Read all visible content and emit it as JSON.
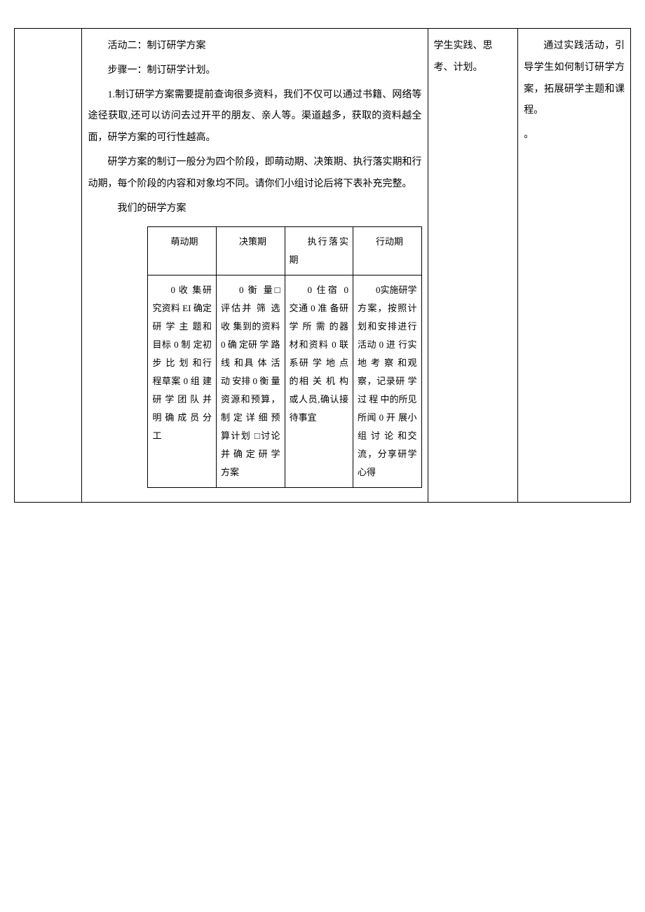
{
  "main": {
    "activity_title": "活动二：制订研学方案",
    "step_title": "步骤一：制订研学计划。",
    "para1": "1.制订研学方案需要提前查询很多资料，我们不仅可以通过书籍、网络等途径获取,还可以访问去过开平的朋友、亲人等。渠道越多，获取的资料越全面，研学方案的可行性越高。",
    "para2": "研学方案的制订一般分为四个阶段，即萌动期、决策期、执行落实期和行动期，每个阶段的内容和对象均不同。请你们小组讨论后将下表补充完整。",
    "table_caption": "我们的研学方案"
  },
  "inner_table": {
    "headers": {
      "h1": "萌动期",
      "h2": "决策期",
      "h3": "执行落实期",
      "h4": "行动期"
    },
    "cells": {
      "c1": "0 收 集研究资料\nEI 确定 研 学 主 题和目标\n0 制 定初 步 比 划 和行程草案\n0 组 建研 学 团 队 并明 确 成 员 分工",
      "c2": "0 衡 量□评估并 筛 选 收 集到的资料\n0 确 定研 学 路 线 和具 体 活 动 安排\n0 衡 量资源和预算，制 定 详 细 预算计划\n□讨论并 确 定 研 学方案",
      "c3": "0 住宿 0 交通\n0 准 备研 学 所 需 的器材和资料\n0 联 系研 学 地 点 的相 关 机 构 或人员,确认接待事宜",
      "c4": "0实施研学方案，按照计划和安排进行活动\n0 进 行实 地 考 察 和观察，记录研 学 过 程 中的所见所闻\n0 开 展小 组 讨 论 和交流，分享研学心得"
    }
  },
  "col3": {
    "text": "学生实践、思考、计划。"
  },
  "col4": {
    "text": "通过实践活动，引导学生如何制订研学方案，拓展研学主题和课程。",
    "extra": "。"
  }
}
